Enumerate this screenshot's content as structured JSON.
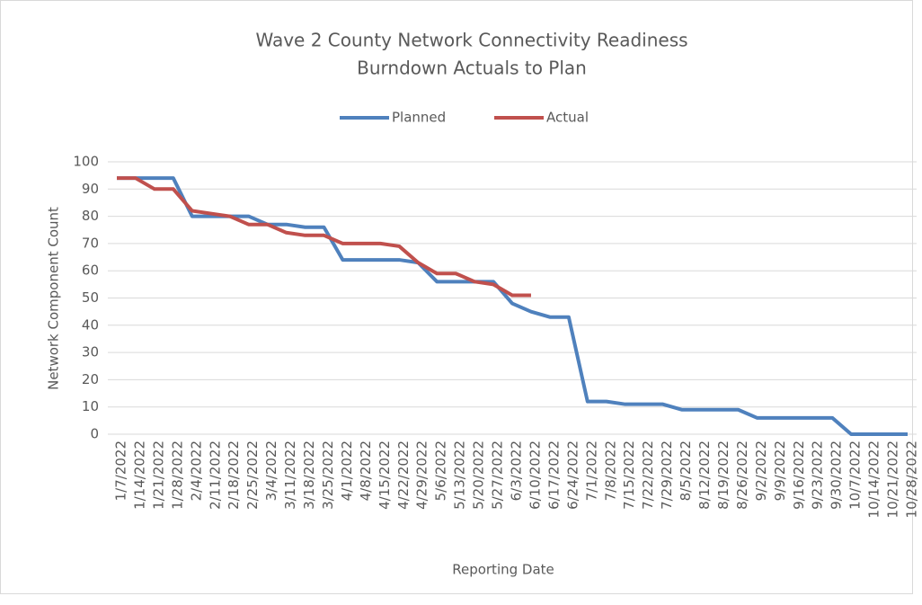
{
  "chart_data": {
    "type": "line",
    "title": "Wave 2 County Network Connectivity Readiness",
    "subtitle": "Burndown Actuals to Plan",
    "x_label": "Reporting Date",
    "y_label": "Network Component Count",
    "categories": [
      "1/7/2022",
      "1/14/2022",
      "1/21/2022",
      "1/28/2022",
      "2/4/2022",
      "2/11/2022",
      "2/18/2022",
      "2/25/2022",
      "3/4/2022",
      "3/11/2022",
      "3/18/2022",
      "3/25/2022",
      "4/1/2022",
      "4/8/2022",
      "4/15/2022",
      "4/22/2022",
      "4/29/2022",
      "5/6/2022",
      "5/13/2022",
      "5/20/2022",
      "5/27/2022",
      "6/3/2022",
      "6/10/2022",
      "6/17/2022",
      "6/24/2022",
      "7/1/2022",
      "7/8/2022",
      "7/15/2022",
      "7/22/2022",
      "7/29/2022",
      "8/5/2022",
      "8/12/2022",
      "8/19/2022",
      "8/26/2022",
      "9/2/2022",
      "9/9/2022",
      "9/16/2022",
      "9/23/2022",
      "9/30/2022",
      "10/7/2022",
      "10/14/2022",
      "10/21/2022",
      "10/28/2022"
    ],
    "series": [
      {
        "name": "Planned",
        "color": "#4f81bd",
        "values": [
          94,
          94,
          94,
          94,
          80,
          80,
          80,
          80,
          77,
          77,
          76,
          76,
          64,
          64,
          64,
          64,
          63,
          56,
          56,
          56,
          56,
          48,
          45,
          43,
          43,
          12,
          12,
          11,
          11,
          11,
          9,
          9,
          9,
          9,
          6,
          6,
          6,
          6,
          6,
          0,
          0,
          0,
          0
        ]
      },
      {
        "name": "Actual",
        "color": "#c0504d",
        "values": [
          94,
          94,
          90,
          90,
          82,
          81,
          80,
          77,
          77,
          74,
          73,
          73,
          70,
          70,
          70,
          69,
          63,
          59,
          59,
          56,
          55,
          51,
          51,
          null,
          null,
          null,
          null,
          null,
          null,
          null,
          null,
          null,
          null,
          null,
          null,
          null,
          null,
          null,
          null,
          null,
          null,
          null,
          null
        ]
      }
    ],
    "ylim": [
      0,
      100
    ],
    "yticks": [
      0,
      10,
      20,
      30,
      40,
      50,
      60,
      70,
      80,
      90,
      100
    ],
    "grid": true,
    "legend": "top"
  }
}
